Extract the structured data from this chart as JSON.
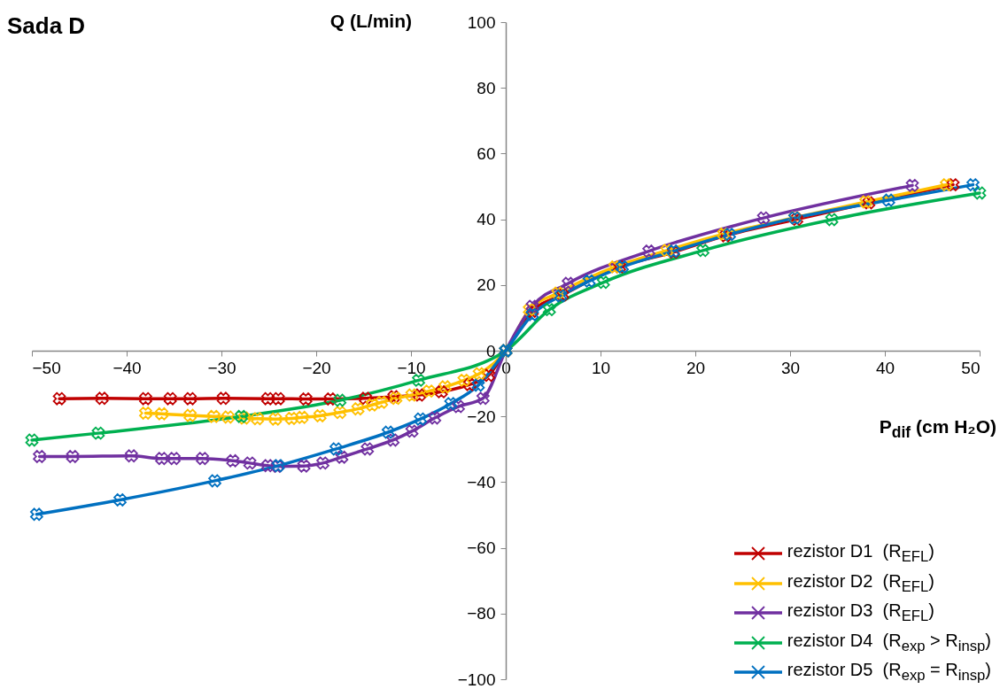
{
  "chart_data": {
    "type": "line",
    "title": "Sada D",
    "xlabel": "P$_{dif}$ (cm H₂O)",
    "ylabel": "Q (L/min)",
    "xlim": [
      -50,
      50
    ],
    "ylim": [
      -100,
      100
    ],
    "xticks": [
      -50,
      -40,
      -30,
      -20,
      -10,
      0,
      10,
      20,
      30,
      40,
      50
    ],
    "yticks": [
      -100,
      -80,
      -60,
      -40,
      -20,
      0,
      20,
      40,
      60,
      80,
      100
    ],
    "grid": false,
    "legend": "bottom right",
    "marker": "cross",
    "line_style": "solid",
    "series": [
      {
        "name": "rezistor D1  (R$_{EFL}$)",
        "color": "#c00000",
        "x": [
          -47.1,
          -42.6,
          -38.0,
          -35.4,
          -33.3,
          -29.8,
          -25.1,
          -24.0,
          -21.1,
          -18.5,
          -14.8,
          -11.8,
          -9.1,
          -6.8,
          -3.8,
          -1.8,
          0,
          2.8,
          6,
          12,
          17.7,
          23.2,
          30.7,
          38.3,
          47.2
        ],
        "values": [
          -14.6,
          -14.5,
          -14.6,
          -14.6,
          -14.6,
          -14.5,
          -14.6,
          -14.6,
          -14.7,
          -14.7,
          -14.5,
          -14,
          -13.5,
          -12.5,
          -10.3,
          -7.5,
          0,
          12,
          17,
          25.5,
          30,
          35,
          40,
          45,
          50.5
        ]
      },
      {
        "name": "rezistor D2  (R$_{EFL}$)",
        "color": "#ffc000",
        "x": [
          -38.0,
          -36.3,
          -33.3,
          -30.8,
          -29.3,
          -27.6,
          -26.2,
          -24.3,
          -22.6,
          -21.5,
          -19.6,
          -17.5,
          -15.6,
          -14.1,
          -13.1,
          -11.6,
          -9.9,
          -8.1,
          -6.4,
          -4.4,
          -2.8,
          0,
          2.5,
          5.5,
          11.5,
          17,
          23,
          30.5,
          38,
          46.5
        ],
        "values": [
          -19,
          -19.2,
          -19.7,
          -20,
          -20.2,
          -20.5,
          -20.7,
          -20.8,
          -20.6,
          -20.3,
          -19.8,
          -18.8,
          -17.7,
          -16.5,
          -15.7,
          -14.5,
          -13.5,
          -12.3,
          -11,
          -9,
          -7,
          0,
          12.5,
          17.5,
          25.5,
          30.5,
          35.5,
          40.5,
          45.3,
          50.5
        ]
      },
      {
        "name": "rezistor D3  (R$_{EFL}$)",
        "color": "#7030a0",
        "x": [
          -49.2,
          -45.7,
          -39.5,
          -36.3,
          -35.0,
          -32.0,
          -28.8,
          -27.0,
          -25.1,
          -24.1,
          -21.3,
          -19.3,
          -17.3,
          -14.6,
          -11.9,
          -9.9,
          -7.5,
          -5.0,
          -2.4,
          0,
          2.8,
          6.6,
          15.1,
          27.2,
          42.9
        ],
        "values": [
          -32.2,
          -32.2,
          -32,
          -32.8,
          -32.8,
          -32.8,
          -33.5,
          -34.2,
          -35,
          -35.2,
          -35.1,
          -34.2,
          -32.4,
          -29.9,
          -27.2,
          -24.5,
          -20.5,
          -17,
          -14.5,
          0,
          13.5,
          20.5,
          30.3,
          40.4,
          50.3
        ]
      },
      {
        "name": "rezistor D4  (R$_{exp}$ > R$_{insp}$)",
        "color": "#00b050",
        "x": [
          -50,
          -43.0,
          -27.9,
          -17.5,
          -9.2,
          0,
          4.6,
          10.3,
          20.8,
          34.4,
          50
        ],
        "values": [
          -27.2,
          -25.1,
          -20,
          -15.1,
          -9,
          0,
          12.5,
          20.8,
          30.5,
          39.9,
          48
        ]
      },
      {
        "name": "rezistor D5  (R$_{exp}$ = R$_{insp}$)",
        "color": "#0070c0",
        "x": [
          -49.5,
          -40.7,
          -30.7,
          -24,
          -17.9,
          -12.4,
          -9.0,
          -5.8,
          -2.9,
          0,
          2.8,
          5.8,
          8.8,
          12.3,
          17.7,
          23.6,
          30.5,
          40.4,
          49.3
        ],
        "values": [
          -49.8,
          -45.4,
          -39.6,
          -35,
          -29.9,
          -24.8,
          -20.8,
          -16.1,
          -10.5,
          0,
          11,
          16.7,
          21.2,
          25.5,
          30.3,
          35.4,
          40.4,
          45.8,
          50.5
        ]
      }
    ]
  }
}
